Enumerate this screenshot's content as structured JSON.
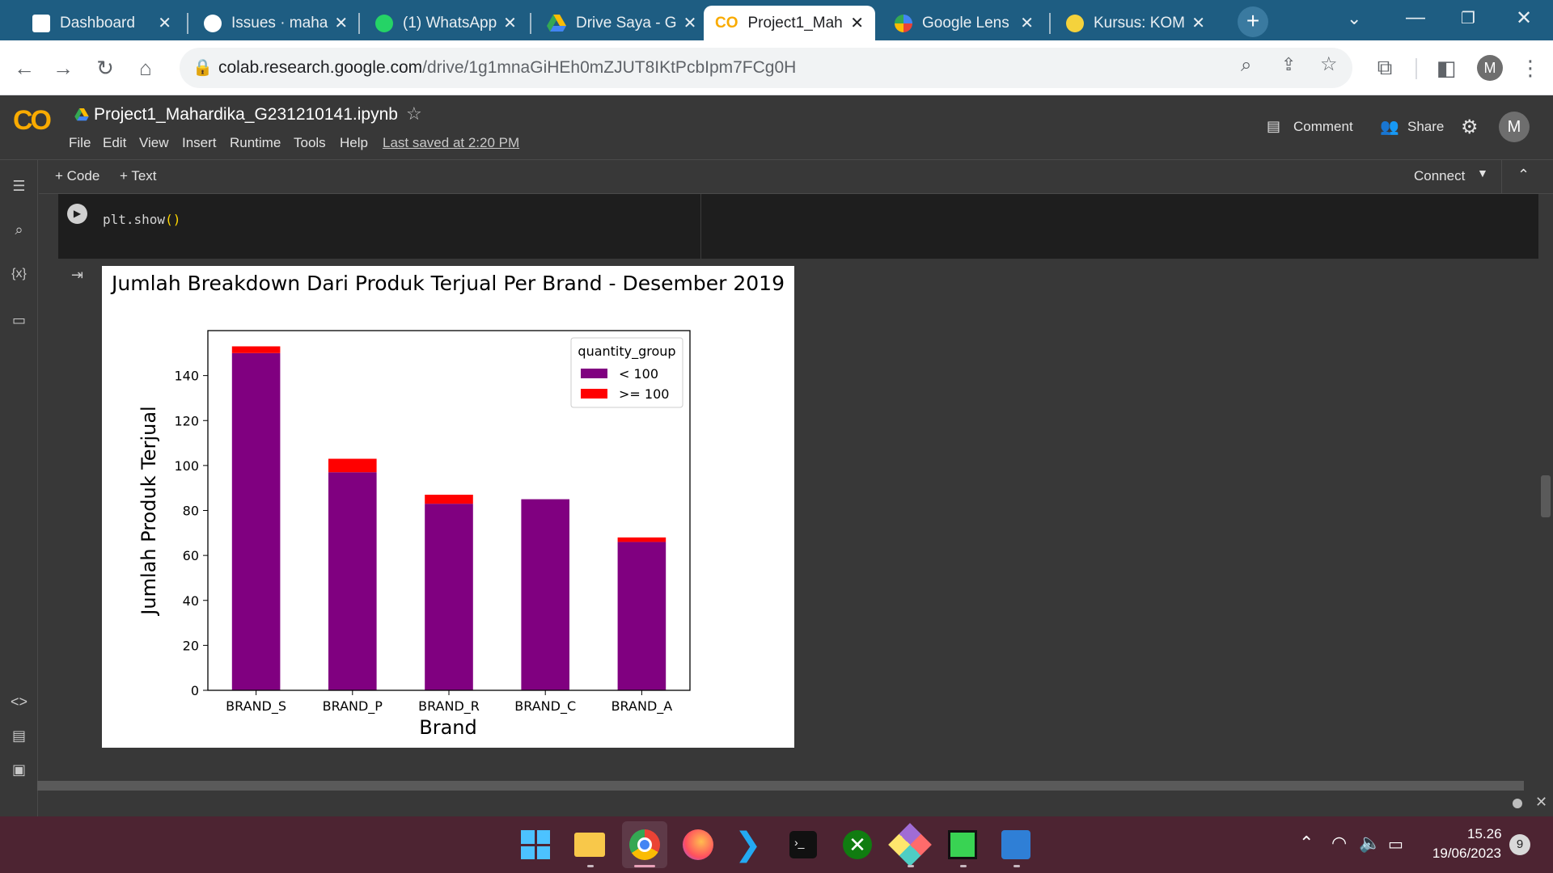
{
  "browser": {
    "tabs": [
      {
        "title": "Dashboard",
        "active": false
      },
      {
        "title": "Issues · maha",
        "active": false
      },
      {
        "title": "(1) WhatsApp",
        "active": false
      },
      {
        "title": "Drive Saya - G",
        "active": false
      },
      {
        "title": "Project1_Mah",
        "active": true
      },
      {
        "title": "Google Lens",
        "active": false
      },
      {
        "title": "Kursus: KOM",
        "active": false
      }
    ],
    "address_host": "colab.research.google.com",
    "address_path": "/drive/1g1mnaGiHEh0mZJUT8IKtPcbIpm7FCg0H",
    "profile_initial": "M"
  },
  "colab": {
    "logo": "CO",
    "notebook_title": "Project1_Mahardika_G231210141.ipynb",
    "menu": [
      "File",
      "Edit",
      "View",
      "Insert",
      "Runtime",
      "Tools",
      "Help"
    ],
    "last_saved": "Last saved at 2:20 PM",
    "comment_label": "Comment",
    "share_label": "Share",
    "avatar_initial": "M",
    "add_code_label": "+ Code",
    "add_text_label": "+ Text",
    "connect_label": "Connect",
    "sidebar_icons": [
      "list-icon",
      "search-icon",
      "variables-icon",
      "folder-icon",
      "code-snippets-icon",
      "command-palette-icon",
      "terminal-icon"
    ]
  },
  "cell": {
    "code_fn": "plt.show",
    "code_parens": "()"
  },
  "chart_data": {
    "type": "bar",
    "stacked": true,
    "title": "Jumlah Breakdown Dari Produk Terjual Per Brand - Desember 2019",
    "xlabel": "Brand",
    "ylabel": "Jumlah Produk Terjual",
    "categories": [
      "BRAND_S",
      "BRAND_P",
      "BRAND_R",
      "BRAND_C",
      "BRAND_A"
    ],
    "series": [
      {
        "name": "< 100",
        "color": "#800080",
        "values": [
          150,
          97,
          83,
          85,
          66
        ]
      },
      {
        "name": ">= 100",
        "color": "#ff0000",
        "values": [
          3,
          6,
          4,
          0,
          2
        ]
      }
    ],
    "ylim": [
      0,
      160
    ],
    "yticks": [
      0,
      20,
      40,
      60,
      80,
      100,
      120,
      140
    ],
    "legend_title": "quantity_group",
    "legend_position": "top-right",
    "grid": false
  },
  "taskbar": {
    "time": "15.26",
    "date": "19/06/2023",
    "notification_count": "9"
  }
}
